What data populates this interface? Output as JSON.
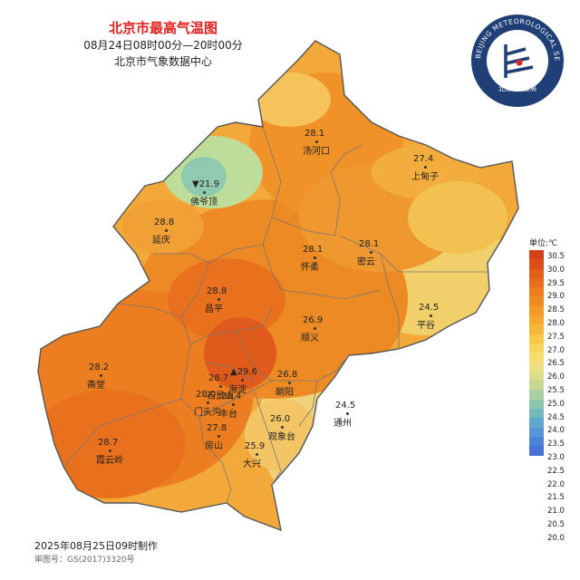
{
  "header": {
    "title": "北京市最高气温图",
    "time_range": "08月24日08时00分—20时00分",
    "agency": "北京市气象数据中心"
  },
  "logo": {
    "ring_text": "BEIJING METEOROLOGICAL SERVICE",
    "name": "北京市气象局",
    "colors": {
      "dark": "#1f3f76",
      "accent": "#d62828"
    }
  },
  "stations": [
    {
      "name": "汤河口",
      "value": "28.1"
    },
    {
      "name": "上甸子",
      "value": "27.4"
    },
    {
      "name": "佛爷顶",
      "value": "21.9",
      "marker": "▼"
    },
    {
      "name": "延庆",
      "value": "28.8"
    },
    {
      "name": "怀柔",
      "value": "28.1"
    },
    {
      "name": "密云",
      "value": "28.1"
    },
    {
      "name": "昌平",
      "value": "28.8"
    },
    {
      "name": "平谷",
      "value": "24.5"
    },
    {
      "name": "顺义",
      "value": "26.9"
    },
    {
      "name": "斋堂",
      "value": "28.2"
    },
    {
      "name": "海淀",
      "value": "29.6",
      "marker": "▲"
    },
    {
      "name": "石景山",
      "value": "28.7"
    },
    {
      "name": "朝阳",
      "value": "26.8"
    },
    {
      "name": "门头沟",
      "value": "28.0"
    },
    {
      "name": "丰台",
      "value": "28.4"
    },
    {
      "name": "通州",
      "value": "24.5"
    },
    {
      "name": "观象台",
      "value": "26.0"
    },
    {
      "name": "房山",
      "value": "27.8"
    },
    {
      "name": "大兴",
      "value": "25.9"
    },
    {
      "name": "霞云岭",
      "value": "28.7"
    }
  ],
  "legend": {
    "title": "单位:℃",
    "ticks": [
      "30.5",
      "30.0",
      "29.5",
      "29.0",
      "28.5",
      "28.0",
      "27.5",
      "27.0",
      "26.5",
      "26.0",
      "25.5",
      "25.0",
      "24.5",
      "24.0",
      "23.5",
      "23.0",
      "22.5",
      "22.0",
      "21.5",
      "21.0",
      "20.5",
      "20.0"
    ],
    "colors": [
      "#d7401d",
      "#df4d1b",
      "#e55e1a",
      "#ea6d1c",
      "#ee7b1f",
      "#f08a22",
      "#f29a26",
      "#f4a82c",
      "#f5b836",
      "#f7c847",
      "#f8d55a",
      "#f6de6e",
      "#eedf82",
      "#dcdc8a",
      "#c4d693",
      "#aacfa0",
      "#8ec6ad",
      "#74b9bc",
      "#5fa7cd",
      "#5795d8",
      "#4f83d9",
      "#4a72d6"
    ]
  },
  "footer": {
    "made": "2025年08月25日09时制作",
    "approval": "审图号：GS(2017)3320号"
  }
}
